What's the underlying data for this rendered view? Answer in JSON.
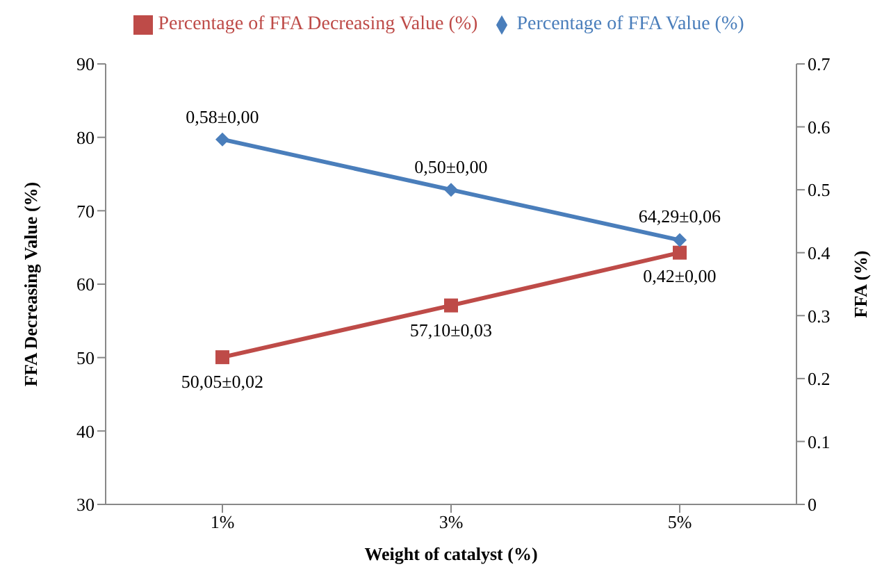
{
  "chart_data": {
    "type": "line",
    "xlabel": "Weight of catalyst (%)",
    "ylabel": "FFA Decreasing Value (%)",
    "y2label": "FFA (%)",
    "categories": [
      "1%",
      "3%",
      "5%"
    ],
    "series": [
      {
        "name": "Percentage of FFA Decreasing Value (%)",
        "color": "#be4b48",
        "marker": "square",
        "values": [
          50.05,
          57.1,
          64.29
        ],
        "value_labels": [
          "50,05±0,02",
          "57,10±0,03",
          "64,29±0,06"
        ]
      },
      {
        "name": "Percentage of FFA Value (%)",
        "color": "#4a7ebb",
        "marker": "diamond",
        "axis": "y2",
        "values": [
          0.58,
          0.5,
          0.42
        ],
        "value_labels": [
          "0,58±0,00",
          "0,50±0,00",
          "0,42±0,00"
        ]
      }
    ],
    "ylim": [
      30,
      90
    ],
    "yticks": [
      30,
      40,
      50,
      60,
      70,
      80,
      90
    ],
    "y2lim": [
      0,
      0.7
    ],
    "y2ticks": [
      0,
      0.1,
      0.2,
      0.3,
      0.4,
      0.5,
      0.6,
      0.7
    ],
    "grid": false,
    "legend": "top",
    "line_style": "solid"
  }
}
